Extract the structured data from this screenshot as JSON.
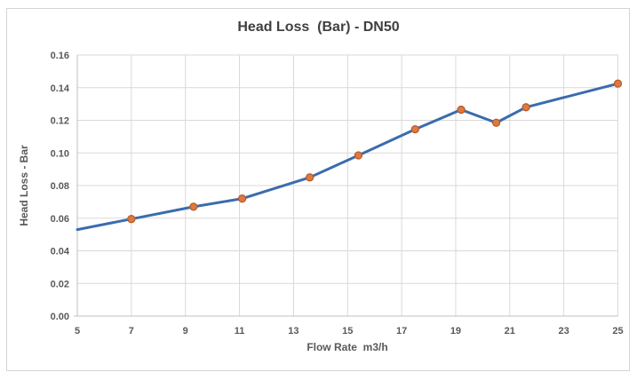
{
  "chart_data": {
    "type": "line",
    "title": "Head Loss  (Bar) - DN50",
    "xlabel": "Flow Rate  m3/h",
    "ylabel": "Head Loss - Bar",
    "xlim": [
      5,
      25
    ],
    "ylim": [
      0,
      0.16
    ],
    "x_ticks": [
      5,
      7,
      9,
      11,
      13,
      15,
      17,
      19,
      21,
      23,
      25
    ],
    "y_ticks": [
      "0.00",
      "0.02",
      "0.04",
      "0.06",
      "0.08",
      "0.10",
      "0.12",
      "0.14",
      "0.16"
    ],
    "grid": true,
    "legend": "none",
    "colors": {
      "gridline": "#d9d9d9",
      "axis": "#bfbfbf",
      "title_text": "#404040",
      "label_text": "#595959"
    },
    "series": [
      {
        "name": "Head Loss (Bar) - DN50",
        "x": [
          5.0,
          7.0,
          9.3,
          11.1,
          13.6,
          15.4,
          17.5,
          19.2,
          20.5,
          21.6,
          25.0
        ],
        "y": [
          0.053,
          0.0595,
          0.067,
          0.072,
          0.085,
          0.0985,
          0.1145,
          0.1265,
          0.1185,
          0.128,
          0.1425
        ],
        "has_marker": [
          false,
          true,
          true,
          true,
          true,
          true,
          true,
          true,
          true,
          true,
          true
        ],
        "line_color": "#3a6cad",
        "marker_fill": "#dd7a40",
        "marker_stroke": "#b85c2b"
      }
    ]
  }
}
